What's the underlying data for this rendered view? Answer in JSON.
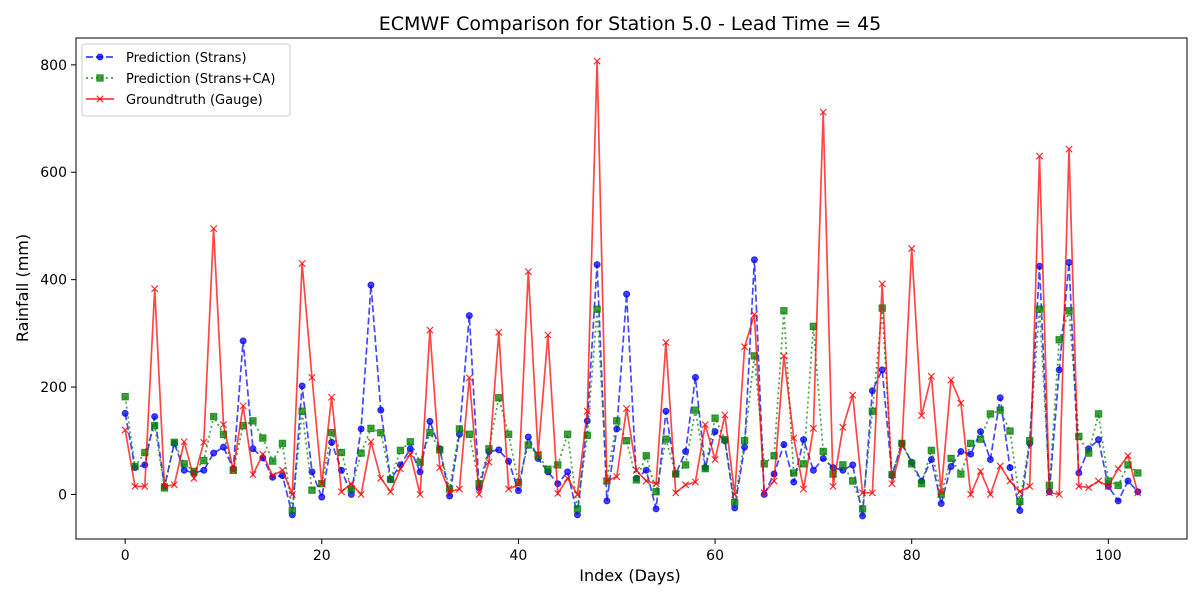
{
  "chart_data": {
    "type": "line",
    "title": "ECMWF Comparison for Station 5.0 - Lead Time = 45",
    "xlabel": "Index (Days)",
    "ylabel": "Rainfall (mm)",
    "xlim": [
      -5,
      108
    ],
    "ylim": [
      -83,
      850
    ],
    "xticks": [
      0,
      20,
      40,
      60,
      80,
      100
    ],
    "yticks": [
      0,
      200,
      400,
      600,
      800
    ],
    "legend_position": "upper-left",
    "grid": false,
    "x_start": 0,
    "series": [
      {
        "name": "Prediction (Strans)",
        "color": "#0000ff",
        "linestyle": "dashed",
        "marker": "circle",
        "values": [
          151,
          50,
          55,
          145,
          15,
          95,
          45,
          40,
          45,
          77,
          88,
          48,
          286,
          85,
          68,
          32,
          35,
          -38,
          202,
          42,
          -5,
          97,
          45,
          0,
          122,
          390,
          157,
          28,
          55,
          85,
          42,
          136,
          85,
          -3,
          112,
          333,
          12,
          80,
          83,
          62,
          7,
          107,
          67,
          42,
          20,
          42,
          -38,
          137,
          428,
          -12,
          122,
          373,
          30,
          45,
          -27,
          155,
          38,
          80,
          218,
          50,
          117,
          100,
          -25,
          88,
          437,
          0,
          38,
          93,
          23,
          102,
          45,
          67,
          50,
          45,
          55,
          -40,
          193,
          232,
          35,
          95,
          60,
          25,
          65,
          -17,
          52,
          80,
          75,
          117,
          65,
          180,
          50,
          -30,
          95,
          425,
          5,
          232,
          432,
          40,
          85,
          102,
          15,
          -12,
          25,
          5
        ]
      },
      {
        "name": "Prediction (Strans+CA)",
        "color": "#008000",
        "linestyle": "dotted",
        "marker": "square",
        "values": [
          182,
          52,
          78,
          128,
          12,
          97,
          57,
          43,
          63,
          145,
          112,
          45,
          128,
          137,
          105,
          62,
          95,
          -30,
          155,
          8,
          20,
          115,
          78,
          10,
          77,
          123,
          115,
          28,
          82,
          98,
          60,
          115,
          83,
          10,
          122,
          112,
          20,
          85,
          180,
          112,
          22,
          92,
          73,
          47,
          55,
          112,
          -27,
          110,
          345,
          25,
          137,
          100,
          27,
          72,
          5,
          103,
          38,
          55,
          157,
          48,
          142,
          102,
          -15,
          100,
          258,
          57,
          72,
          342,
          40,
          57,
          313,
          80,
          38,
          55,
          25,
          -27,
          155,
          347,
          37,
          95,
          57,
          20,
          82,
          0,
          67,
          38,
          95,
          103,
          150,
          157,
          118,
          -13,
          100,
          345,
          17,
          288,
          342,
          108,
          77,
          150,
          25,
          17,
          55,
          40
        ]
      },
      {
        "name": "Groundtruth (Gauge)",
        "color": "#ff0000",
        "linestyle": "solid",
        "marker": "x",
        "values": [
          120,
          15,
          15,
          383,
          15,
          18,
          98,
          30,
          97,
          495,
          130,
          45,
          165,
          37,
          75,
          35,
          45,
          0,
          430,
          218,
          20,
          181,
          5,
          20,
          0,
          98,
          30,
          5,
          48,
          75,
          0,
          306,
          50,
          5,
          10,
          217,
          0,
          60,
          302,
          10,
          18,
          415,
          75,
          297,
          2,
          30,
          0,
          155,
          807,
          25,
          33,
          160,
          45,
          25,
          20,
          283,
          3,
          18,
          23,
          130,
          65,
          148,
          0,
          275,
          335,
          3,
          25,
          258,
          105,
          10,
          123,
          712,
          15,
          125,
          185,
          3,
          3,
          392,
          20,
          90,
          458,
          147,
          220,
          5,
          213,
          170,
          0,
          43,
          0,
          53,
          25,
          5,
          15,
          630,
          3,
          0,
          643,
          15,
          13,
          25,
          15,
          48,
          72,
          3
        ]
      }
    ]
  }
}
